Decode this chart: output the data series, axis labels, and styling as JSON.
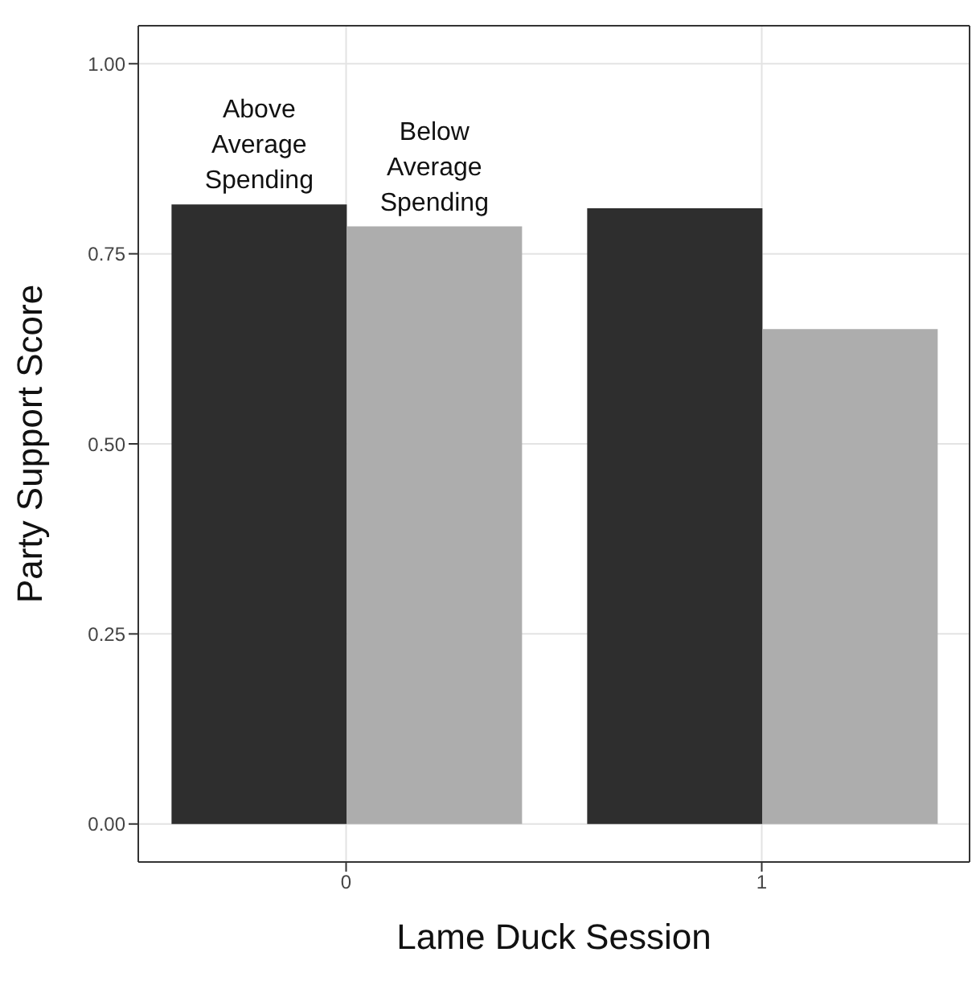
{
  "chart_data": {
    "type": "bar",
    "xlabel": "Lame Duck Session",
    "ylabel": "Party Support Score",
    "categories": [
      "0",
      "1"
    ],
    "series": [
      {
        "name": "Above Average Spending",
        "color": "#2e2e2e",
        "values": [
          0.815,
          0.81
        ]
      },
      {
        "name": "Below Average Spending",
        "color": "#adadad",
        "values": [
          0.786,
          0.651
        ]
      }
    ],
    "ylim": [
      -0.05,
      1.05
    ],
    "yticks": [
      {
        "value": 0,
        "label": "0.00"
      },
      {
        "value": 0.25,
        "label": "0.25"
      },
      {
        "value": 0.5,
        "label": "0.50"
      },
      {
        "value": 0.75,
        "label": "0.75"
      },
      {
        "value": 1,
        "label": "1.00"
      }
    ],
    "grid": true
  }
}
